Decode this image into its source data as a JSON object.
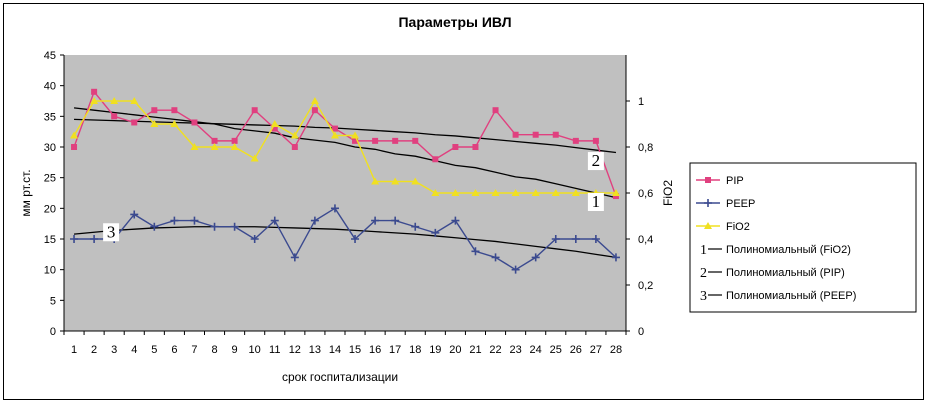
{
  "chart_data": {
    "type": "line",
    "title": "Параметры ИВЛ",
    "xlabel": "срок госпитализации",
    "ylabel": "мм рт.ст.",
    "y2label": "FiO2",
    "categories": [
      "1",
      "2",
      "3",
      "4",
      "5",
      "6",
      "7",
      "8",
      "9",
      "10",
      "11",
      "12",
      "13",
      "14",
      "15",
      "16",
      "17",
      "18",
      "19",
      "20",
      "21",
      "22",
      "23",
      "24",
      "25",
      "26",
      "27",
      "28"
    ],
    "ylim": [
      0,
      45
    ],
    "y_ticks": [
      "0",
      "5",
      "10",
      "15",
      "20",
      "25",
      "30",
      "35",
      "40",
      "45"
    ],
    "y2lim": [
      0,
      1.2
    ],
    "y2_ticks": [
      "0",
      "0,2",
      "0,4",
      "0,6",
      "0,8",
      "1"
    ],
    "grid": false,
    "legend_position": "right",
    "series": [
      {
        "name": "PIP",
        "axis": "left",
        "color": "#e0407f",
        "marker": "square",
        "values": [
          30,
          39,
          35,
          34,
          36,
          36,
          34,
          31,
          31,
          36,
          33,
          30,
          36,
          33,
          31,
          31,
          31,
          31,
          28,
          30,
          30,
          36,
          32,
          32,
          32,
          31,
          31,
          22
        ]
      },
      {
        "name": "PEEP",
        "axis": "left",
        "color": "#3b4a8f",
        "marker": "plus",
        "values": [
          15,
          15,
          15,
          19,
          17,
          18,
          18,
          17,
          17,
          15,
          18,
          12,
          18,
          20,
          15,
          18,
          18,
          17,
          16,
          18,
          13,
          12,
          10,
          12,
          15,
          15,
          15,
          12
        ]
      },
      {
        "name": "FiO2",
        "axis": "right",
        "color": "#f0e020",
        "marker": "triangle",
        "values": [
          0.85,
          1.0,
          1.0,
          1.0,
          0.9,
          0.9,
          0.8,
          0.8,
          0.8,
          0.75,
          0.9,
          0.85,
          1.0,
          0.85,
          0.85,
          0.65,
          0.65,
          0.65,
          0.6,
          0.6,
          0.6,
          0.6,
          0.6,
          0.6,
          0.6,
          0.6,
          0.6,
          0.6
        ]
      }
    ],
    "trendlines": [
      {
        "number": "1",
        "name": "Полиномиальный (FiO2)",
        "axis": "right",
        "color": "#000000",
        "values": [
          0.97,
          0.96,
          0.95,
          0.94,
          0.93,
          0.92,
          0.91,
          0.9,
          0.88,
          0.87,
          0.86,
          0.84,
          0.83,
          0.82,
          0.8,
          0.79,
          0.77,
          0.76,
          0.74,
          0.72,
          0.71,
          0.69,
          0.67,
          0.66,
          0.64,
          0.62,
          0.6,
          0.58
        ]
      },
      {
        "number": "2",
        "name": "Полиномиальный (PIP)",
        "axis": "left",
        "color": "#000000",
        "values": [
          34.5,
          34.4,
          34.3,
          34.2,
          34.1,
          34,
          33.9,
          33.8,
          33.7,
          33.6,
          33.5,
          33.4,
          33.2,
          33.1,
          32.9,
          32.7,
          32.5,
          32.3,
          32,
          31.8,
          31.5,
          31.2,
          30.9,
          30.6,
          30.3,
          29.9,
          29.5,
          29.1
        ]
      },
      {
        "number": "3",
        "name": "Полиномиальный (PEEP)",
        "axis": "left",
        "color": "#000000",
        "values": [
          15.8,
          16.1,
          16.4,
          16.6,
          16.8,
          16.9,
          17,
          17,
          17,
          17,
          16.9,
          16.8,
          16.7,
          16.6,
          16.4,
          16.2,
          16,
          15.8,
          15.5,
          15.2,
          14.9,
          14.6,
          14.2,
          13.8,
          13.4,
          13,
          12.5,
          12
        ]
      }
    ]
  }
}
